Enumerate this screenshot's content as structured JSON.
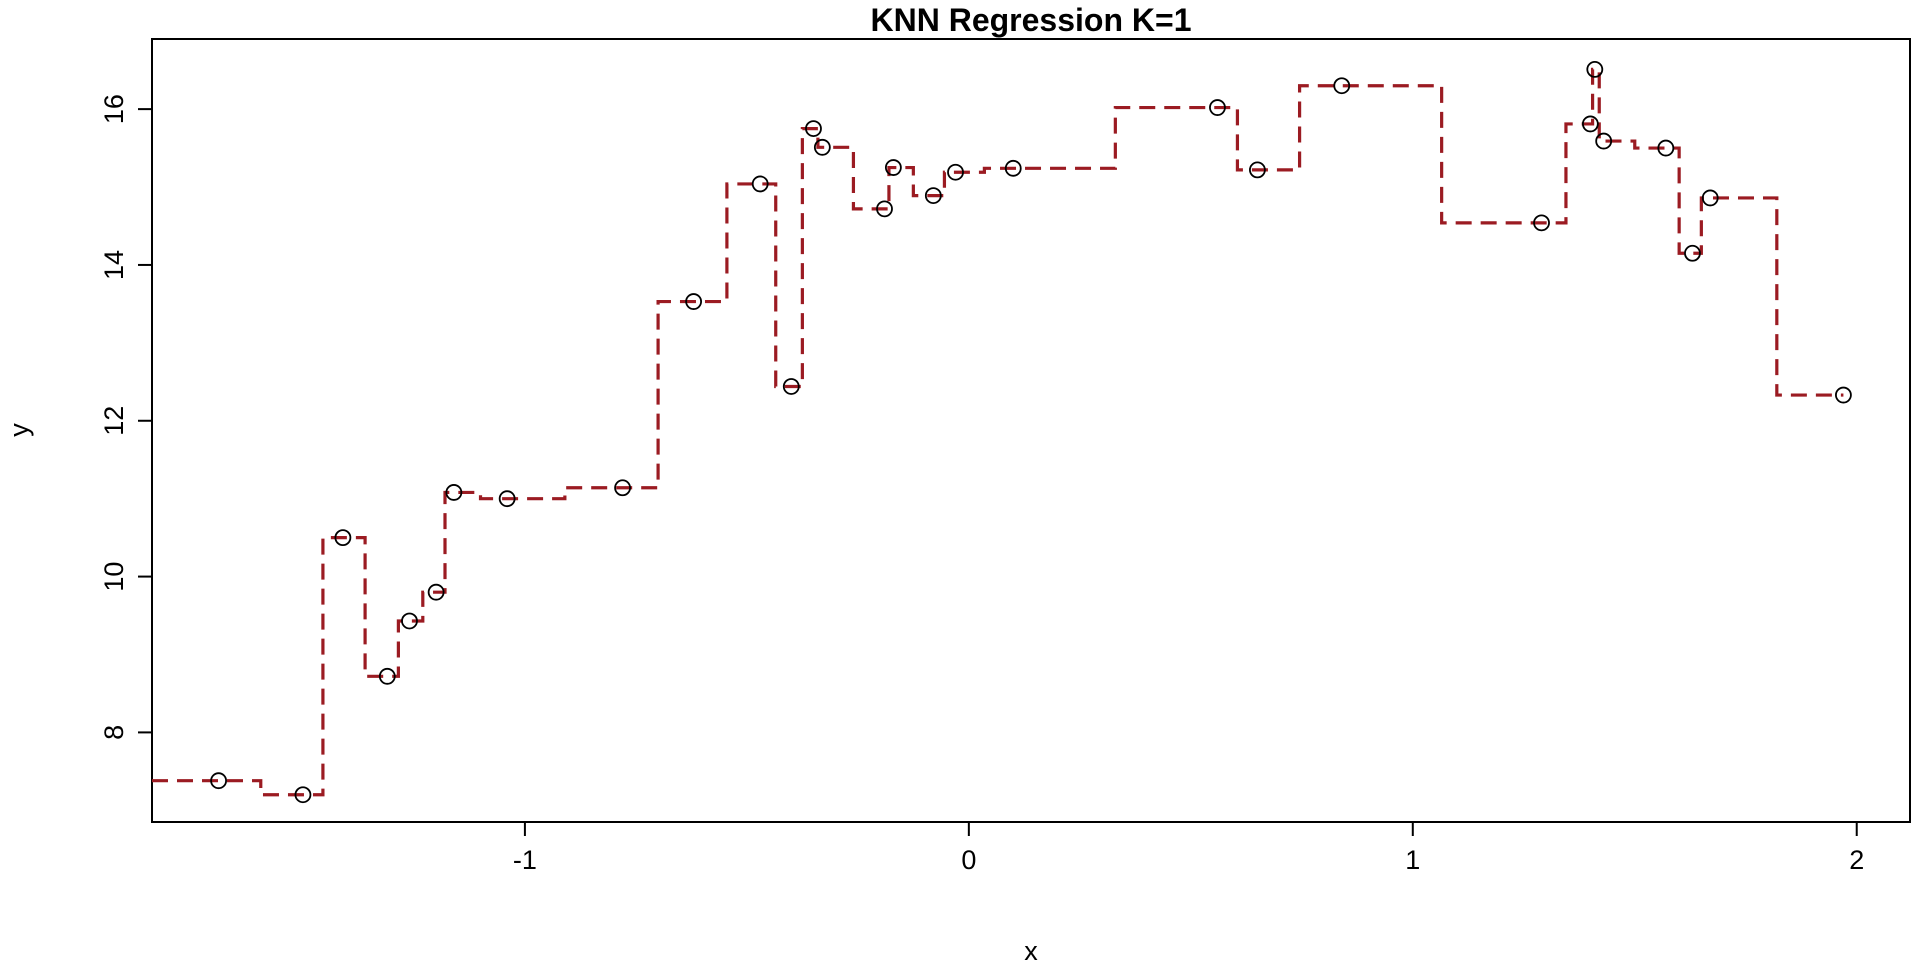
{
  "chart_data": {
    "type": "line",
    "title": "KNN Regression K=1",
    "xlabel": "x",
    "ylabel": "y",
    "xlim": [
      -1.84,
      2.12
    ],
    "ylim": [
      6.85,
      16.9
    ],
    "xticks": [
      -1,
      0,
      1,
      2
    ],
    "yticks": [
      8,
      10,
      12,
      14,
      16
    ],
    "xtick_labels": [
      "-1",
      "0",
      "1",
      "2"
    ],
    "ytick_labels": [
      "8",
      "10",
      "12",
      "14",
      "16"
    ],
    "grid": false,
    "legend": "none",
    "line_color": "#9b1b22",
    "line_style": "dashed",
    "point_style": "open-circle",
    "series": [
      {
        "points": [
          {
            "x": -1.69,
            "y": 7.38
          },
          {
            "x": -1.5,
            "y": 7.2
          },
          {
            "x": -1.41,
            "y": 10.5
          },
          {
            "x": -1.31,
            "y": 8.72
          },
          {
            "x": -1.26,
            "y": 9.43
          },
          {
            "x": -1.2,
            "y": 9.8
          },
          {
            "x": -1.16,
            "y": 11.08
          },
          {
            "x": -1.04,
            "y": 11.0
          },
          {
            "x": -0.78,
            "y": 11.14
          },
          {
            "x": -0.62,
            "y": 13.53
          },
          {
            "x": -0.47,
            "y": 15.04
          },
          {
            "x": -0.4,
            "y": 12.44
          },
          {
            "x": -0.35,
            "y": 15.75
          },
          {
            "x": -0.33,
            "y": 15.51
          },
          {
            "x": -0.19,
            "y": 14.72
          },
          {
            "x": -0.17,
            "y": 15.25
          },
          {
            "x": -0.08,
            "y": 14.89
          },
          {
            "x": -0.03,
            "y": 15.19
          },
          {
            "x": 0.1,
            "y": 15.24
          },
          {
            "x": 0.56,
            "y": 16.02
          },
          {
            "x": 0.65,
            "y": 15.22
          },
          {
            "x": 0.84,
            "y": 16.3
          },
          {
            "x": 1.29,
            "y": 14.54
          },
          {
            "x": 1.4,
            "y": 15.81
          },
          {
            "x": 1.41,
            "y": 16.51
          },
          {
            "x": 1.43,
            "y": 15.59
          },
          {
            "x": 1.57,
            "y": 15.5
          },
          {
            "x": 1.63,
            "y": 14.15
          },
          {
            "x": 1.67,
            "y": 14.86
          },
          {
            "x": 1.97,
            "y": 12.33
          }
        ]
      }
    ]
  }
}
